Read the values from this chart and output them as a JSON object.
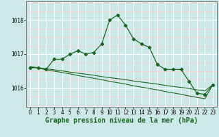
{
  "bg_color": "#cce8e8",
  "grid_color_major": "#ffffff",
  "grid_color_minor": "#ffcccc",
  "line_color": "#1a6620",
  "marker_color": "#1a6620",
  "xlabel": "Graphe pression niveau de la mer (hPa)",
  "xlabel_fontsize": 7,
  "tick_fontsize": 5.5,
  "xlim": [
    -0.5,
    23.5
  ],
  "ylim": [
    1015.45,
    1018.55
  ],
  "yticks": [
    1016,
    1017,
    1018
  ],
  "xticks": [
    0,
    1,
    2,
    3,
    4,
    5,
    6,
    7,
    8,
    9,
    10,
    11,
    12,
    13,
    14,
    15,
    16,
    17,
    18,
    19,
    20,
    21,
    22,
    23
  ],
  "s1": [
    1016.6,
    1016.6,
    1016.55,
    1016.85,
    1016.85,
    1017.0,
    1017.1,
    1017.0,
    1017.05,
    1017.3,
    1018.0,
    1018.15,
    1017.85,
    1017.45,
    1017.3,
    1017.2,
    1016.7,
    1016.55,
    1016.55,
    1016.55,
    1016.2,
    1015.85,
    1015.82,
    1016.1
  ],
  "s2": [
    1016.63,
    1016.6,
    1016.57,
    1016.54,
    1016.51,
    1016.47,
    1016.44,
    1016.41,
    1016.38,
    1016.34,
    1016.31,
    1016.28,
    1016.25,
    1016.21,
    1016.18,
    1016.15,
    1016.12,
    1016.08,
    1016.05,
    1016.02,
    1015.99,
    1015.95,
    1015.92,
    1016.1
  ],
  "s3": [
    1016.63,
    1016.59,
    1016.54,
    1016.5,
    1016.46,
    1016.42,
    1016.37,
    1016.33,
    1016.29,
    1016.25,
    1016.2,
    1016.16,
    1016.12,
    1016.07,
    1016.03,
    1015.99,
    1015.95,
    1015.9,
    1015.86,
    1015.82,
    1015.77,
    1015.73,
    1015.69,
    1016.1
  ]
}
